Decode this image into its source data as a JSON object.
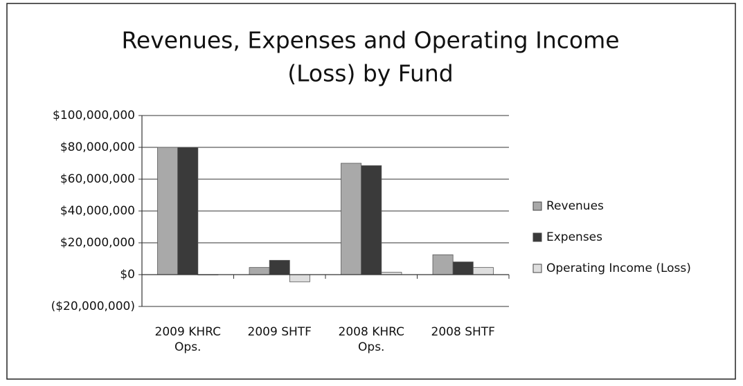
{
  "chart_data": {
    "type": "bar",
    "title": "Revenues, Expenses and Operating Income (Loss) by Fund",
    "categories": [
      "2009 KHRC Ops.",
      "2009 SHTF",
      "2008 KHRC Ops.",
      "2008 SHTF"
    ],
    "series": [
      {
        "name": "Revenues",
        "color": "#a9a9a9",
        "values": [
          80000000,
          4500000,
          70000000,
          12500000
        ]
      },
      {
        "name": "Expenses",
        "color": "#3a3a3a",
        "values": [
          80000000,
          9000000,
          68500000,
          8000000
        ]
      },
      {
        "name": "Operating Income (Loss)",
        "color": "#dedede",
        "values": [
          0,
          -4500000,
          1500000,
          4500000
        ]
      }
    ],
    "ylim": [
      -20000000,
      100000000
    ],
    "yticks": [
      {
        "value": -20000000,
        "label": "($20,000,000)"
      },
      {
        "value": 0,
        "label": "$0"
      },
      {
        "value": 20000000,
        "label": "$20,000,000"
      },
      {
        "value": 40000000,
        "label": "$40,000,000"
      },
      {
        "value": 60000000,
        "label": "$60,000,000"
      },
      {
        "value": 80000000,
        "label": "$80,000,000"
      },
      {
        "value": 100000000,
        "label": "$100,000,000"
      }
    ],
    "grid": true,
    "legend": "right"
  }
}
